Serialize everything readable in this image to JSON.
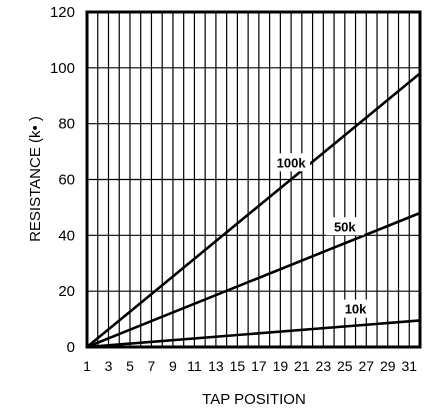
{
  "chart_data": {
    "type": "line",
    "title": "",
    "xlabel": "TAP POSITION",
    "ylabel": "RESISTANCE (k• )",
    "xlim": [
      1,
      32
    ],
    "ylim": [
      0,
      120
    ],
    "x_ticks": [
      1,
      3,
      5,
      7,
      9,
      11,
      13,
      15,
      17,
      19,
      21,
      23,
      25,
      27,
      29,
      31
    ],
    "y_ticks": [
      0,
      20,
      40,
      60,
      80,
      100,
      120
    ],
    "grid": true,
    "legend": "none",
    "series": [
      {
        "name": "100k",
        "x": [
          1,
          32
        ],
        "y": [
          0,
          98
        ]
      },
      {
        "name": "50k",
        "x": [
          1,
          32
        ],
        "y": [
          0,
          48
        ]
      },
      {
        "name": "10k",
        "x": [
          1,
          32
        ],
        "y": [
          0,
          9.5
        ]
      }
    ]
  }
}
